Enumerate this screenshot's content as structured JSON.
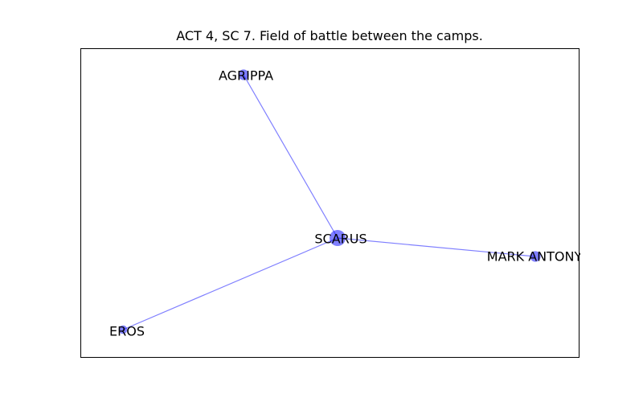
{
  "title": "ACT 4, SC 7. Field of battle between the camps.",
  "colors": {
    "node": "#0000ff",
    "edge": "#0000ff",
    "frame": "#000000"
  },
  "graph": {
    "nodes": [
      {
        "id": "scarus",
        "label": "SCARUS",
        "weight": 3
      },
      {
        "id": "agrippa",
        "label": "AGRIPPA",
        "weight": 1
      },
      {
        "id": "mark_antony",
        "label": "MARK ANTONY",
        "weight": 1
      },
      {
        "id": "eros",
        "label": "EROS",
        "weight": 0.5
      }
    ],
    "edges": [
      {
        "source": "scarus",
        "target": "agrippa"
      },
      {
        "source": "scarus",
        "target": "mark_antony"
      },
      {
        "source": "scarus",
        "target": "eros"
      }
    ]
  }
}
